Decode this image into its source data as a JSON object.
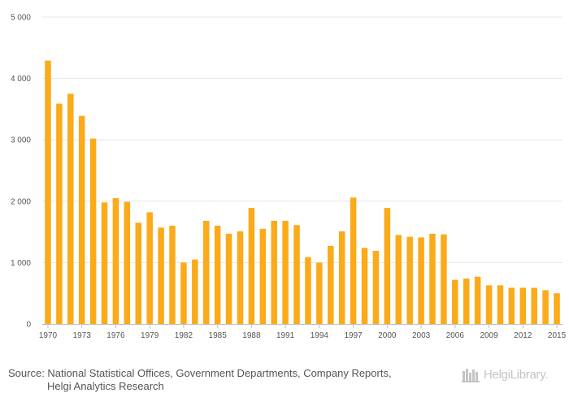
{
  "chart_data": {
    "type": "bar",
    "title": "",
    "xlabel": "",
    "ylabel": "",
    "ylim": [
      0,
      5000
    ],
    "yticks": [
      0,
      1000,
      2000,
      3000,
      4000,
      5000
    ],
    "ytick_labels": [
      "0",
      "1 000",
      "2 000",
      "3 000",
      "4 000",
      "5 000"
    ],
    "bar_color": "#fbaa19",
    "categories": [
      1970,
      1971,
      1972,
      1973,
      1974,
      1975,
      1976,
      1977,
      1978,
      1979,
      1980,
      1981,
      1982,
      1983,
      1984,
      1985,
      1986,
      1987,
      1988,
      1989,
      1990,
      1991,
      1992,
      1993,
      1994,
      1995,
      1996,
      1997,
      1998,
      1999,
      2000,
      2001,
      2002,
      2003,
      2004,
      2005,
      2006,
      2007,
      2008,
      2009,
      2010,
      2011,
      2012,
      2013,
      2014,
      2015
    ],
    "values": [
      4290,
      3590,
      3750,
      3390,
      3020,
      1980,
      2050,
      1990,
      1650,
      1820,
      1570,
      1600,
      1000,
      1050,
      1680,
      1600,
      1470,
      1510,
      1890,
      1550,
      1680,
      1680,
      1610,
      1090,
      1000,
      1270,
      1510,
      2060,
      1240,
      1190,
      1890,
      1450,
      1420,
      1410,
      1470,
      1460,
      720,
      740,
      770,
      630,
      630,
      590,
      590,
      590,
      550,
      500
    ],
    "xtick_labels": [
      "1970",
      "1973",
      "1976",
      "1979",
      "1982",
      "1985",
      "1988",
      "1991",
      "1994",
      "1997",
      "2000",
      "2003",
      "2006",
      "2009",
      "2012",
      "2015"
    ]
  },
  "footer": {
    "source_line1": "Source: National Statistical Offices, Government Departments, Company Reports,",
    "source_line2": "Helgi Analytics Research",
    "brand": "HelgiLibrary."
  }
}
